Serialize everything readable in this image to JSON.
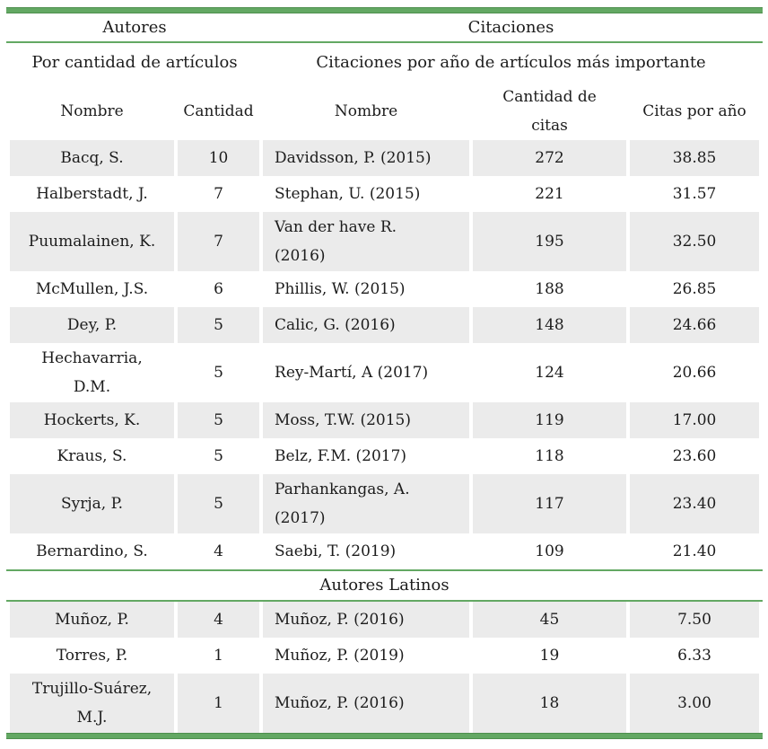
{
  "colors": {
    "green_accent": "#63a863",
    "green_edge": "#4e8f4e",
    "row_shade_gray": "#ebebeb",
    "text": "#1c1c1c"
  },
  "header": {
    "group_left": "Autores",
    "group_right": "Citaciones",
    "sub_left": "Por cantidad de artículos",
    "sub_right": "Citaciones por año de artículos más importante",
    "col1": "Nombre",
    "col2": "Cantidad",
    "col3": "Nombre",
    "col4": "Cantidad de\ncitas",
    "col5": "Citas por año"
  },
  "latin_section_title": "Autores Latinos",
  "rows": [
    {
      "name": "Bacq, S.",
      "cantidad": "10",
      "cite": "Davidsson, P. (2015)",
      "citas": "272",
      "por_anio": "38.85",
      "shade": true,
      "tall": false
    },
    {
      "name": "Halberstadt, J.",
      "cantidad": "7",
      "cite": "Stephan, U. (2015)",
      "citas": "221",
      "por_anio": "31.57",
      "shade": false,
      "tall": false
    },
    {
      "name": "Puumalainen, K.",
      "cantidad": "7",
      "cite": "Van der have R.\n(2016)",
      "citas": "195",
      "por_anio": "32.50",
      "shade": true,
      "tall": true
    },
    {
      "name": "McMullen, J.S.",
      "cantidad": "6",
      "cite": "Phillis, W. (2015)",
      "citas": "188",
      "por_anio": "26.85",
      "shade": false,
      "tall": false
    },
    {
      "name": "Dey, P.",
      "cantidad": "5",
      "cite": "Calic, G. (2016)",
      "citas": "148",
      "por_anio": "24.66",
      "shade": true,
      "tall": false
    },
    {
      "name": "Hechavarria,\nD.M.",
      "cantidad": "5",
      "cite": "Rey-Martí, A (2017)",
      "citas": "124",
      "por_anio": "20.66",
      "shade": false,
      "tall": true
    },
    {
      "name": "Hockerts, K.",
      "cantidad": "5",
      "cite": "Moss, T.W. (2015)",
      "citas": "119",
      "por_anio": "17.00",
      "shade": true,
      "tall": false
    },
    {
      "name": "Kraus, S.",
      "cantidad": "5",
      "cite": "Belz, F.M. (2017)",
      "citas": "118",
      "por_anio": "23.60",
      "shade": false,
      "tall": false
    },
    {
      "name": "Syrja, P.",
      "cantidad": "5",
      "cite": "Parhankangas, A.\n(2017)",
      "citas": "117",
      "por_anio": "23.40",
      "shade": true,
      "tall": true
    },
    {
      "name": "Bernardino, S.",
      "cantidad": "4",
      "cite": "Saebi, T. (2019)",
      "citas": "109",
      "por_anio": "21.40",
      "shade": false,
      "tall": false
    }
  ],
  "latin_rows": [
    {
      "name": "Muñoz, P.",
      "cantidad": "4",
      "cite": "Muñoz, P. (2016)",
      "citas": "45",
      "por_anio": "7.50",
      "shade": true,
      "tall": false
    },
    {
      "name": "Torres, P.",
      "cantidad": "1",
      "cite": "Muñoz, P. (2019)",
      "citas": "19",
      "por_anio": "6.33",
      "shade": false,
      "tall": false
    },
    {
      "name": "Trujillo-Suárez,\nM.J.",
      "cantidad": "1",
      "cite": "Muñoz, P. (2016)",
      "citas": "18",
      "por_anio": "3.00",
      "shade": true,
      "tall": true
    }
  ]
}
